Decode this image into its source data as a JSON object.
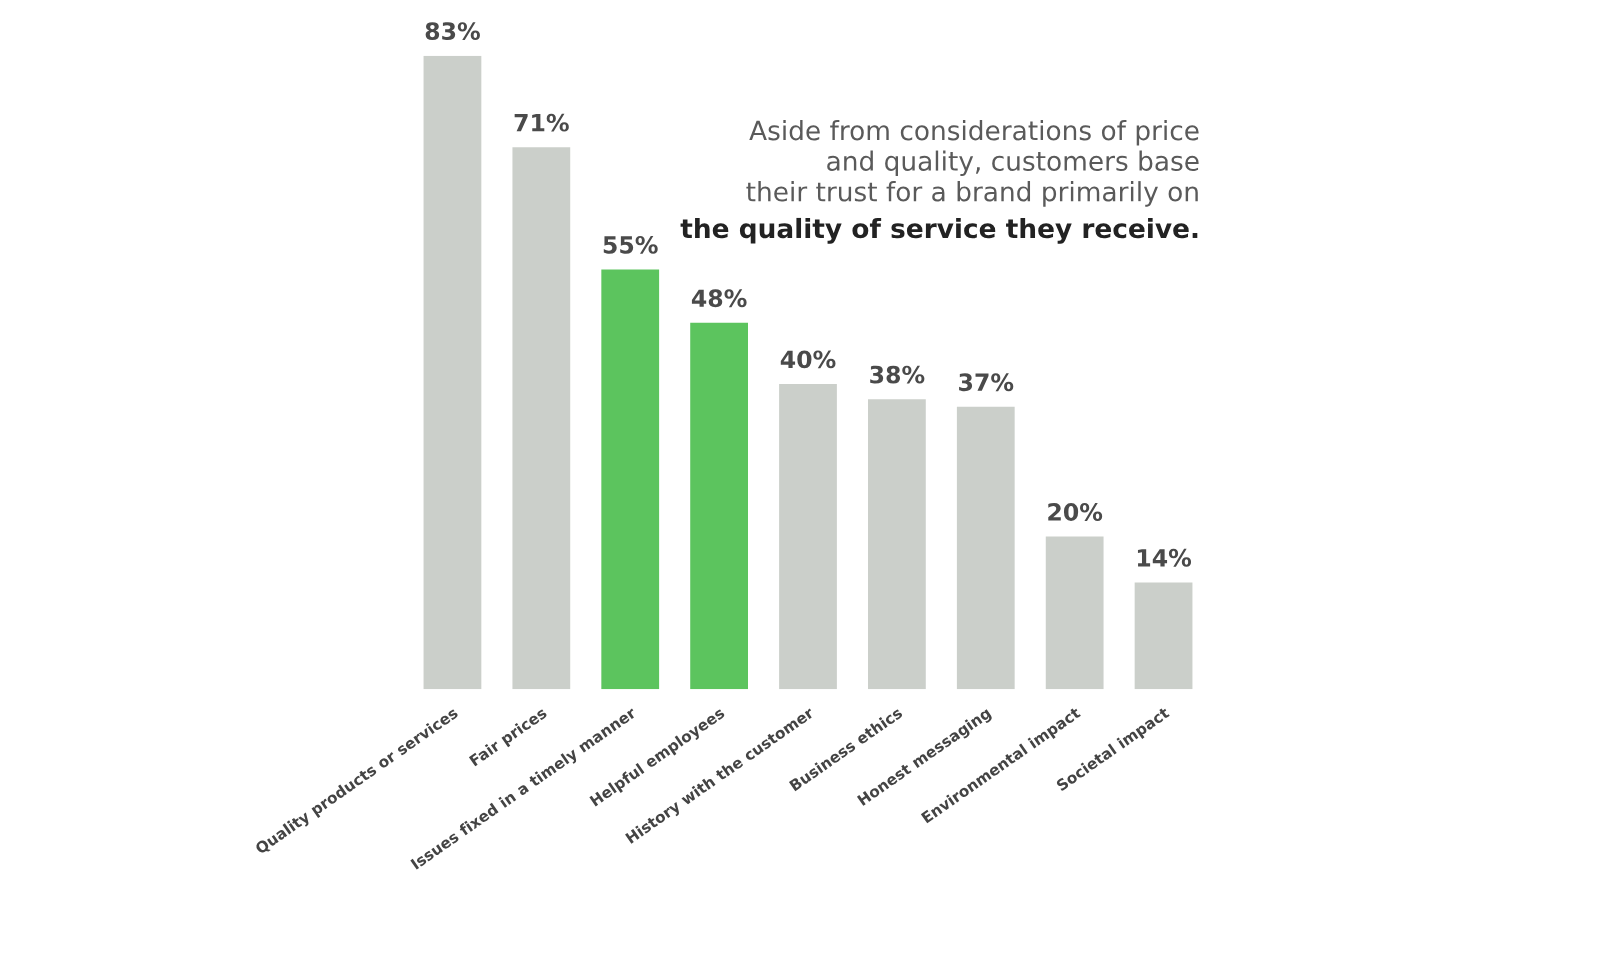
{
  "chart_data": {
    "type": "bar",
    "categories": [
      "Quality products or services",
      "Fair prices",
      "Issues fixed in a timely manner",
      "Helpful employees",
      "History with the customer",
      "Business ethics",
      "Honest messaging",
      "Environmental impact",
      "Societal impact"
    ],
    "values": [
      83,
      71,
      55,
      48,
      40,
      38,
      37,
      20,
      14
    ],
    "colors": [
      "#cbcfca",
      "#cbcfca",
      "#5cc45e",
      "#5cc45e",
      "#cbcfca",
      "#cbcfca",
      "#cbcfca",
      "#cbcfca",
      "#cbcfca"
    ],
    "value_labels": [
      "83%",
      "71%",
      "55%",
      "48%",
      "40%",
      "38%",
      "37%",
      "20%",
      "14%"
    ],
    "annotations": [
      "Aside from considerations of price\nand quality, customers base\ntheir trust for a brand primarily on",
      "the quality of service they receive."
    ],
    "grid": false,
    "legend": false
  }
}
